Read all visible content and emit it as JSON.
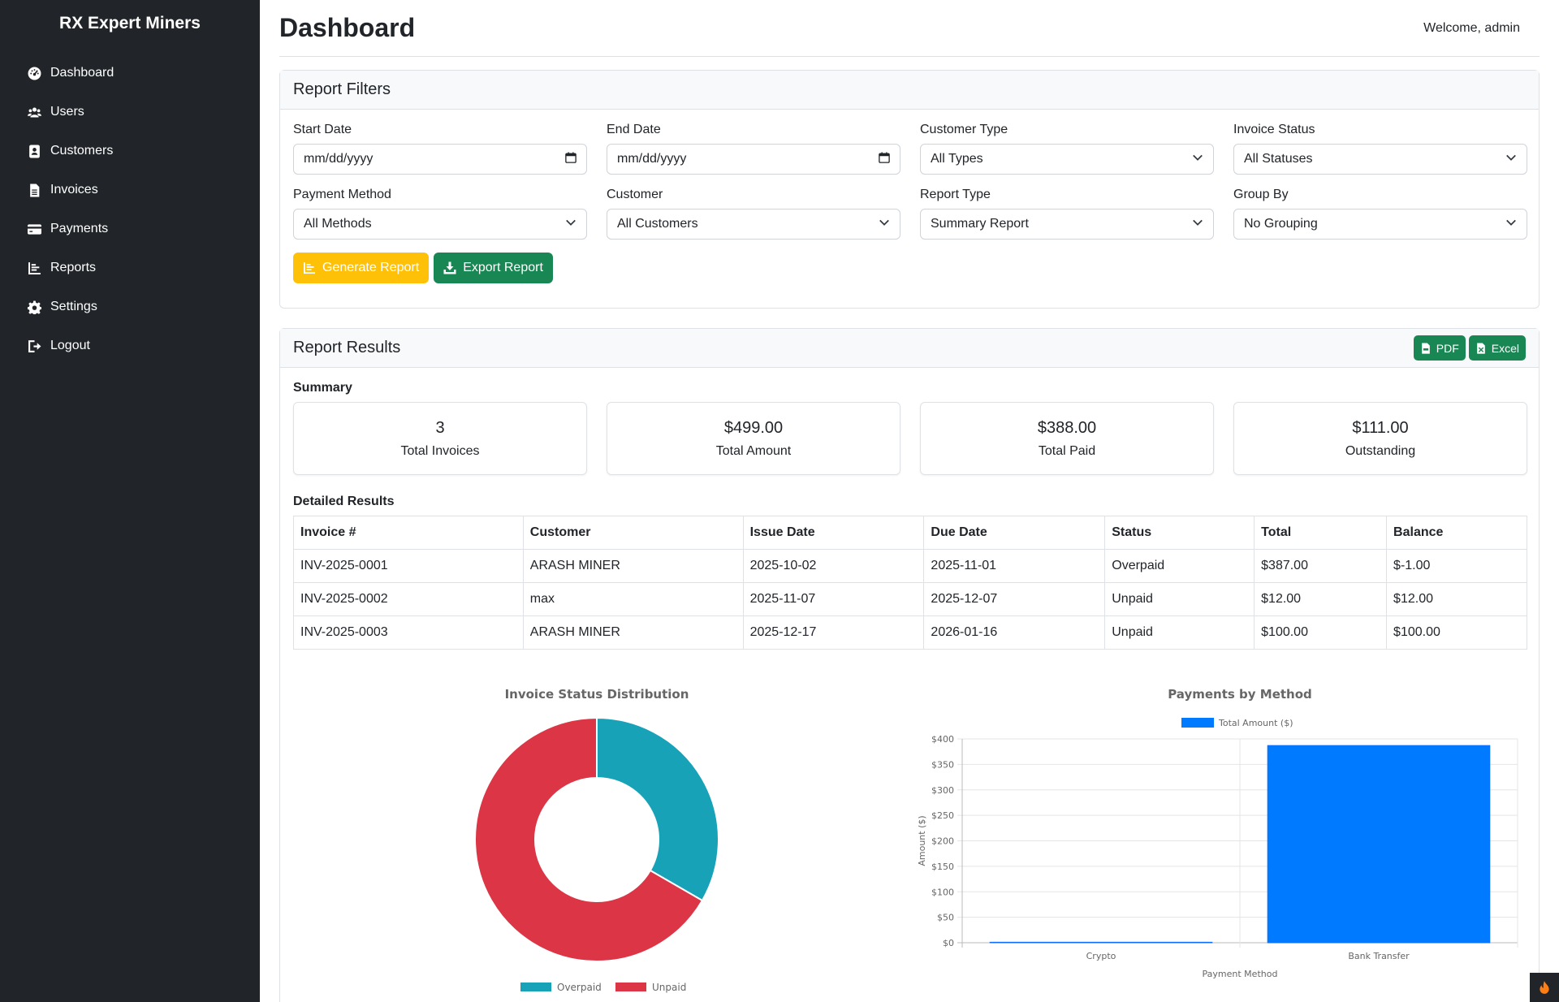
{
  "app": {
    "brand": "RX Expert Miners"
  },
  "sidebar": {
    "items": [
      {
        "label": "Dashboard",
        "icon": "gauge-icon"
      },
      {
        "label": "Users",
        "icon": "users-icon"
      },
      {
        "label": "Customers",
        "icon": "contact-card-icon"
      },
      {
        "label": "Invoices",
        "icon": "document-icon"
      },
      {
        "label": "Payments",
        "icon": "credit-card-icon"
      },
      {
        "label": "Reports",
        "icon": "chart-icon"
      },
      {
        "label": "Settings",
        "icon": "gear-icon"
      },
      {
        "label": "Logout",
        "icon": "logout-icon"
      }
    ]
  },
  "header": {
    "title": "Dashboard",
    "welcome": "Welcome, admin"
  },
  "filters": {
    "title": "Report Filters",
    "start_date": {
      "label": "Start Date",
      "value": "mm/dd/yyyy"
    },
    "end_date": {
      "label": "End Date",
      "value": "mm/dd/yyyy"
    },
    "customer_type": {
      "label": "Customer Type",
      "value": "All Types"
    },
    "invoice_status": {
      "label": "Invoice Status",
      "value": "All Statuses"
    },
    "payment_method": {
      "label": "Payment Method",
      "value": "All Methods"
    },
    "customer": {
      "label": "Customer",
      "value": "All Customers"
    },
    "report_type": {
      "label": "Report Type",
      "value": "Summary Report"
    },
    "group_by": {
      "label": "Group By",
      "value": "No Grouping"
    },
    "generate_label": "Generate Report",
    "export_label": "Export Report"
  },
  "results": {
    "title": "Report Results",
    "pdf_label": "PDF",
    "excel_label": "Excel",
    "summary_label": "Summary",
    "stats": [
      {
        "value": "3",
        "label": "Total Invoices"
      },
      {
        "value": "$499.00",
        "label": "Total Amount"
      },
      {
        "value": "$388.00",
        "label": "Total Paid"
      },
      {
        "value": "$111.00",
        "label": "Outstanding"
      }
    ],
    "detailed_label": "Detailed Results",
    "table": {
      "headers": [
        "Invoice #",
        "Customer",
        "Issue Date",
        "Due Date",
        "Status",
        "Total",
        "Balance"
      ],
      "rows": [
        [
          "INV-2025-0001",
          "ARASH MINER",
          "2025-10-02",
          "2025-11-01",
          "Overpaid",
          "$387.00",
          "$-1.00"
        ],
        [
          "INV-2025-0002",
          "max",
          "2025-11-07",
          "2025-12-07",
          "Unpaid",
          "$12.00",
          "$12.00"
        ],
        [
          "INV-2025-0003",
          "ARASH MINER",
          "2025-12-17",
          "2026-01-16",
          "Unpaid",
          "$100.00",
          "$100.00"
        ]
      ]
    }
  },
  "chart_data": [
    {
      "type": "pie",
      "title": "Invoice Status Distribution",
      "categories": [
        "Overpaid",
        "Unpaid"
      ],
      "values": [
        1,
        2
      ],
      "colors": [
        "#17a2b8",
        "#dc3545"
      ],
      "legend": "bottom"
    },
    {
      "type": "bar",
      "title": "Payments by Method",
      "categories": [
        "Crypto",
        "Bank Transfer"
      ],
      "series": [
        {
          "name": "Total Amount ($)",
          "values": [
            1,
            387
          ],
          "color": "#007bff"
        }
      ],
      "xlabel": "Payment Method",
      "ylabel": "Amount ($)",
      "ylim": [
        0,
        400
      ],
      "yticks": [
        "$0",
        "$50",
        "$100",
        "$150",
        "$200",
        "$250",
        "$300",
        "$350",
        "$400"
      ],
      "legend": "top",
      "grid": true
    }
  ]
}
